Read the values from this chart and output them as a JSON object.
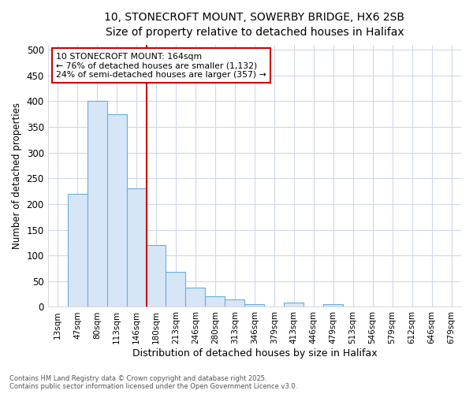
{
  "title_line1": "10, STONECROFT MOUNT, SOWERBY BRIDGE, HX6 2SB",
  "title_line2": "Size of property relative to detached houses in Halifax",
  "xlabel": "Distribution of detached houses by size in Halifax",
  "ylabel": "Number of detached properties",
  "bar_labels": [
    "13sqm",
    "47sqm",
    "80sqm",
    "113sqm",
    "146sqm",
    "180sqm",
    "213sqm",
    "246sqm",
    "280sqm",
    "313sqm",
    "346sqm",
    "379sqm",
    "413sqm",
    "446sqm",
    "479sqm",
    "513sqm",
    "546sqm",
    "579sqm",
    "612sqm",
    "646sqm",
    "679sqm"
  ],
  "bar_values": [
    0,
    220,
    400,
    375,
    230,
    120,
    68,
    38,
    20,
    15,
    5,
    0,
    8,
    0,
    5,
    0,
    0,
    0,
    0,
    0,
    0
  ],
  "bar_color": "#d6e6f7",
  "bar_edge_color": "#6baed6",
  "vline_x_index": 4.5,
  "vline_color": "#cc0000",
  "ylim": [
    0,
    510
  ],
  "yticks": [
    0,
    50,
    100,
    150,
    200,
    250,
    300,
    350,
    400,
    450,
    500
  ],
  "annotation_title": "10 STONECROFT MOUNT: 164sqm",
  "annotation_line1": "← 76% of detached houses are smaller (1,132)",
  "annotation_line2": "24% of semi-detached houses are larger (357) →",
  "annotation_box_color": "#cc0000",
  "footer_line1": "Contains HM Land Registry data © Crown copyright and database right 2025.",
  "footer_line2": "Contains public sector information licensed under the Open Government Licence v3.0.",
  "bg_color": "#ffffff",
  "plot_bg_color": "#ffffff",
  "grid_color": "#d0d8e8"
}
